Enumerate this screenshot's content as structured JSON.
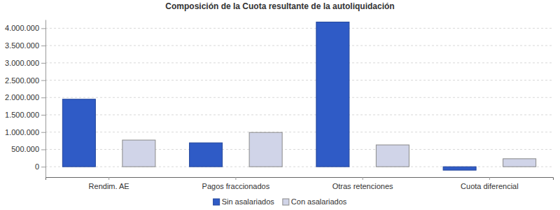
{
  "chart_data": {
    "type": "bar",
    "title": "Composición de la Cuota resultante de la autoliquidación",
    "categories": [
      "Rendim. AE",
      "Pagos fraccionados",
      "Otras retenciones",
      "Cuota diferencial"
    ],
    "series": [
      {
        "name": "Sin asalariados",
        "color": "#2f5bc6",
        "values": [
          1950000,
          690000,
          4180000,
          -100000
        ]
      },
      {
        "name": "Con asalariados",
        "color": "#d0d4e8",
        "values": [
          770000,
          990000,
          630000,
          230000
        ]
      }
    ],
    "ylim": [
      -300000,
      4250000
    ],
    "yticks": [
      0,
      {
        "value": 500000,
        "label": "500.000"
      },
      {
        "value": 1000000,
        "label": "1.000.000"
      },
      {
        "value": 1500000,
        "label": "1.500.000"
      },
      {
        "value": 2000000,
        "label": "2.000.000"
      },
      {
        "value": 2500000,
        "label": "2.500.000"
      },
      {
        "value": 3000000,
        "label": "3.000.000"
      },
      {
        "value": 3500000,
        "label": "3.500.000"
      },
      {
        "value": 4000000,
        "label": "4.000.000"
      }
    ],
    "grid": true,
    "legend": "bottom"
  }
}
